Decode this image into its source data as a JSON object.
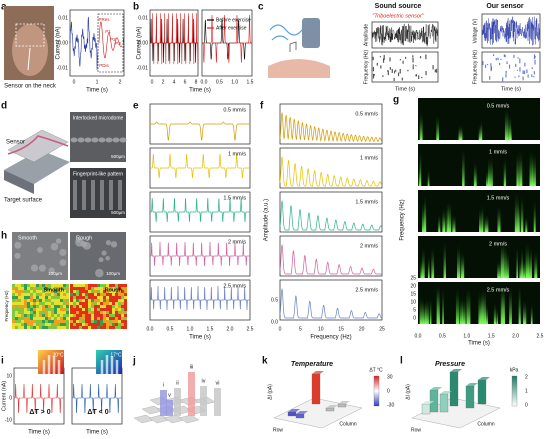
{
  "figure": {
    "a": {
      "label": "a",
      "photo_caption": "Sensor on the neck",
      "ylabel": "Current (nA)",
      "xlabel": "Time (s)",
      "yticks": [
        "0.01",
        "0.00",
        "-0.01"
      ],
      "xticks": [
        "0",
        "1",
        "2"
      ],
      "peaks": [
        "PRes",
        "P1",
        "P2",
        "P3",
        "PDis"
      ]
    },
    "b": {
      "label": "b",
      "ylabel": "Current (nA)",
      "xlabel": "Time (s)",
      "yticks": [
        "0.01",
        "0.00",
        "-0.01"
      ],
      "xticks": [
        "0",
        "2",
        "4",
        "6",
        "8"
      ],
      "xticks_zoom": [
        "0.0",
        "0.5",
        "1.0",
        "1.5"
      ],
      "legend": [
        "Before exercise",
        "After exercise"
      ]
    },
    "c": {
      "label": "c",
      "sound_title": "Sound source",
      "sensor_title": "Our sensor",
      "caption": "\"Triboelectric sensor\"",
      "sound_ylabels": [
        "Amplitude",
        "Frequency (Hz)"
      ],
      "sensor_ylabels": [
        "Voltage (V)",
        "Frequency (Hz)"
      ],
      "xlabels": [
        "Time (s)",
        "Time (s)"
      ]
    },
    "d": {
      "label": "d",
      "sensor": "Sensor",
      "target": "Target surface",
      "top_caption": "Interlocked microdome",
      "bottom_caption": "Fingerprint-like pattern",
      "scale_bars": [
        "500μm",
        "500μm"
      ]
    },
    "e": {
      "label": "e",
      "xlabel": "Time (s)",
      "xticks": [
        "0.0",
        "0.5",
        "1.0",
        "1.5",
        "2.0",
        "2.5"
      ],
      "speeds": [
        "0.5 mm/s",
        "1 mm/s",
        "1.5 mm/s",
        "2 mm/s",
        "2.5 mm/s"
      ]
    },
    "f": {
      "label": "f",
      "ylabel": "Amplitude (a.u.)",
      "xlabel": "Frequency (Hz)",
      "xticks": [
        "0",
        "5",
        "10",
        "15",
        "20",
        "25"
      ],
      "yticks": [
        "0.5",
        "0.0"
      ],
      "speeds": [
        "0.5 mm/s",
        "1 mm/s",
        "1.5 mm/s",
        "2 mm/s",
        "2.5 mm/s"
      ]
    },
    "g": {
      "label": "g",
      "ylabel": "Frequency (Hz)",
      "xlabel": "Time (s)",
      "xticks": [
        "0.0",
        "0.5",
        "1.0",
        "1.5",
        "2.0",
        "2.5"
      ],
      "yticks": [
        "25",
        "20",
        "15",
        "10",
        "5",
        "0"
      ],
      "speeds": [
        "0.5 mm/s",
        "1 mm/s",
        "1.5 mm/s",
        "2 mm/s",
        "2.5 mm/s"
      ]
    },
    "h": {
      "label": "h",
      "sem": [
        "Smooth",
        "Rough"
      ],
      "scale_bars": [
        "100μm",
        "100μm"
      ],
      "maps": [
        "Smooth",
        "Rough"
      ],
      "ylabel": "Frequency (Hz)"
    },
    "i": {
      "label": "i",
      "temps": [
        "30°C",
        "17°C"
      ],
      "ylabel": "Current (nA)",
      "xlabels": [
        "Time (s)",
        "Time (s)"
      ],
      "conditions": [
        "ΔT > 0",
        "ΔT < 0"
      ],
      "yticks": [
        "10",
        "0",
        "-10"
      ]
    },
    "j": {
      "label": "j",
      "pixels": [
        "i",
        "ii",
        "iii",
        "iv",
        "v",
        "vi"
      ]
    },
    "k": {
      "label": "k",
      "title": "Temperature",
      "unit": "ΔT °C",
      "scale": [
        "30",
        "0",
        "-30"
      ],
      "zlabel": "ΔI (pA)",
      "row": "Row",
      "column": "Column"
    },
    "l": {
      "label": "l",
      "title": "Pressure",
      "unit": "kPa",
      "scale": [
        "2",
        "1",
        "0"
      ],
      "zlabel": "ΔI (pA)",
      "row": "Row",
      "column": "Column"
    }
  }
}
